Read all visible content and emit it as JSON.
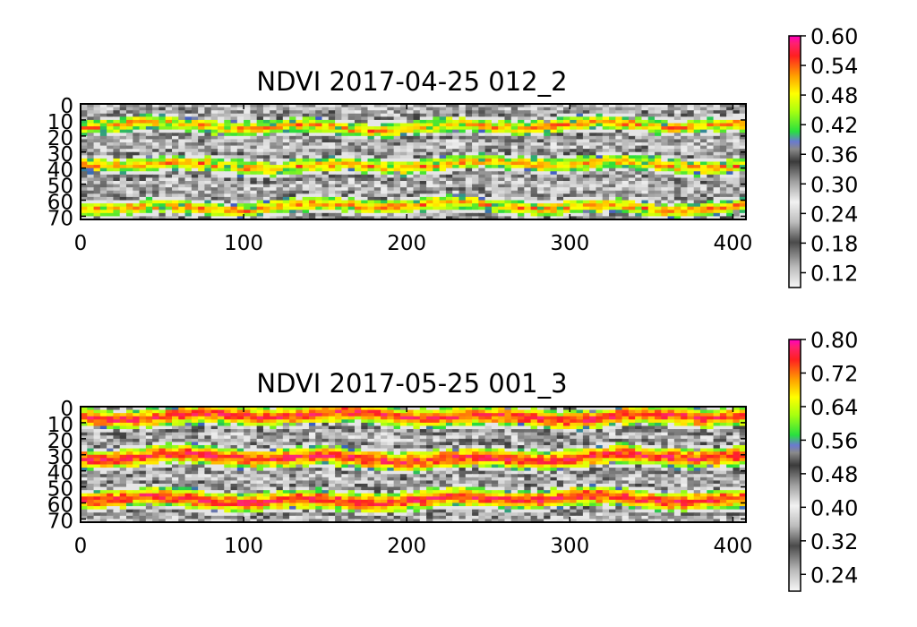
{
  "chart_data": [
    {
      "type": "heatmap",
      "title": "NDVI 2017-04-25 012_2",
      "xlabel": "",
      "ylabel": "",
      "xlim": [
        0,
        408
      ],
      "ylim": [
        0,
        72
      ],
      "x_ticks": [
        "0",
        "100",
        "200",
        "300",
        "400"
      ],
      "y_ticks": [
        "0",
        "10",
        "20",
        "30",
        "40",
        "50",
        "60",
        "70"
      ],
      "colorbar": {
        "range": [
          0.09,
          0.6
        ],
        "ticks": [
          "0.60",
          "0.54",
          "0.48",
          "0.42",
          "0.36",
          "0.30",
          "0.24",
          "0.18",
          "0.12"
        ]
      },
      "vegetation_bands_center_rows": [
        14,
        38,
        64
      ],
      "peak_value_approx": 0.56
    },
    {
      "type": "heatmap",
      "title": "NDVI 2017-05-25 001_3",
      "xlabel": "",
      "ylabel": "",
      "xlim": [
        0,
        408
      ],
      "ylim": [
        0,
        72
      ],
      "x_ticks": [
        "0",
        "100",
        "200",
        "300",
        "400"
      ],
      "y_ticks": [
        "0",
        "10",
        "20",
        "30",
        "40",
        "50",
        "60",
        "70"
      ],
      "colorbar": {
        "range": [
          0.2,
          0.8
        ],
        "ticks": [
          "0.80",
          "0.72",
          "0.64",
          "0.56",
          "0.48",
          "0.40",
          "0.32",
          "0.24"
        ]
      },
      "vegetation_bands_center_rows": [
        6,
        32,
        58
      ],
      "peak_value_approx": 0.78
    }
  ]
}
